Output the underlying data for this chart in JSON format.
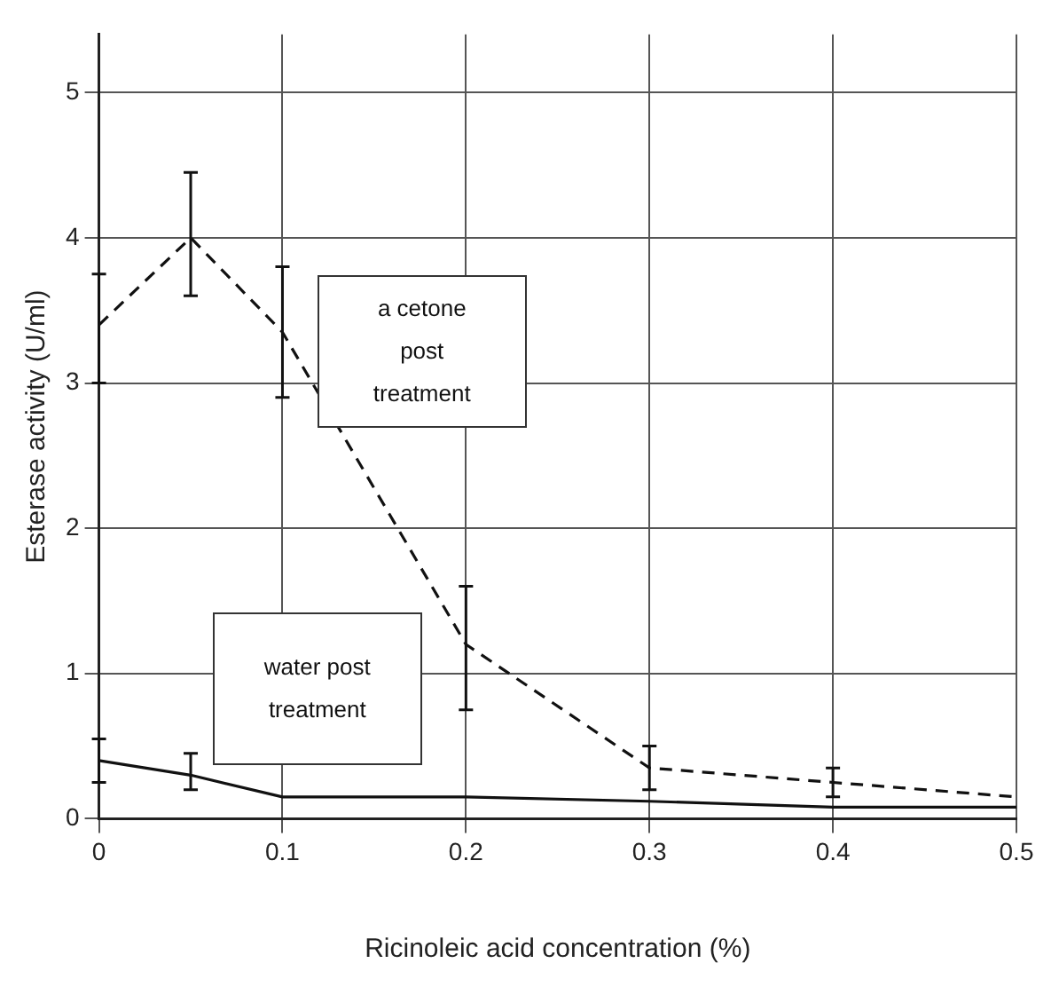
{
  "chart_data": {
    "type": "line",
    "xlabel": "Ricinoleic acid concentration (%)",
    "ylabel": "Esterase activity (U/ml)",
    "xlim": [
      0,
      0.5
    ],
    "xticks": [
      0,
      0.1,
      0.2,
      0.3,
      0.4,
      0.5
    ],
    "ylim": [
      0,
      5.4
    ],
    "yticks": [
      0,
      1,
      2,
      3,
      4,
      5
    ],
    "grid": true,
    "legend": false,
    "marker": "none",
    "series": [
      {
        "name": "a cetone post treatment",
        "color": "#111111",
        "line_style": "dashed",
        "x": [
          0,
          0.05,
          0.1,
          0.2,
          0.3,
          0.4,
          0.5
        ],
        "values": [
          3.4,
          4.0,
          3.35,
          1.2,
          0.35,
          0.25,
          0.15
        ],
        "errors": [
          [
            3.0,
            3.75
          ],
          [
            3.6,
            4.45
          ],
          [
            2.9,
            3.8
          ],
          [
            0.75,
            1.6
          ],
          [
            0.2,
            0.5
          ],
          [
            0.15,
            0.35
          ],
          null
        ]
      },
      {
        "name": "water post treatment",
        "color": "#111111",
        "line_style": "solid",
        "x": [
          0,
          0.05,
          0.1,
          0.2,
          0.3,
          0.4,
          0.5
        ],
        "values": [
          0.4,
          0.3,
          0.15,
          0.15,
          0.12,
          0.08,
          0.08
        ],
        "errors": [
          [
            0.25,
            0.55
          ],
          [
            0.2,
            0.45
          ],
          null,
          null,
          null,
          null,
          null
        ]
      }
    ]
  }
}
